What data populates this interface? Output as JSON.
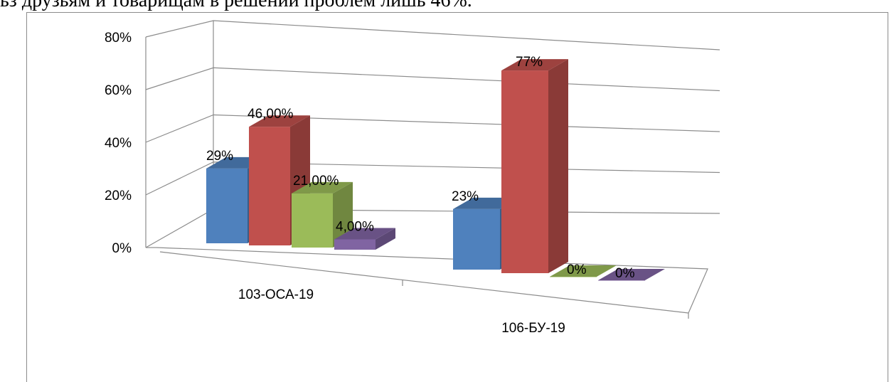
{
  "page_text": {
    "top_line": "ьз друзьям и товарищам в решении проблем лишь 46%."
  },
  "chart_data": {
    "type": "bar",
    "style": "3d-clustered-column",
    "title": "",
    "xlabel": "",
    "ylabel": "",
    "ylim": [
      0,
      80
    ],
    "yticks": [
      0,
      20,
      40,
      60,
      80
    ],
    "ytick_labels": [
      "0%",
      "20%",
      "40%",
      "60%",
      "80%"
    ],
    "grid": true,
    "legend": "none",
    "categories": [
      "103-ОСА-19",
      "106-БУ-19"
    ],
    "series": [
      {
        "color": "#4f81bd",
        "values": [
          29,
          23
        ],
        "labels": [
          "29%",
          "23%"
        ]
      },
      {
        "color": "#c0504d",
        "values": [
          46,
          77
        ],
        "labels": [
          "46,00%",
          "77%"
        ]
      },
      {
        "color": "#9bbb59",
        "values": [
          21,
          0
        ],
        "labels": [
          "21,00%",
          "0%"
        ]
      },
      {
        "color": "#8064a2",
        "values": [
          4,
          0
        ],
        "labels": [
          "4,00%",
          "0%"
        ]
      }
    ]
  }
}
